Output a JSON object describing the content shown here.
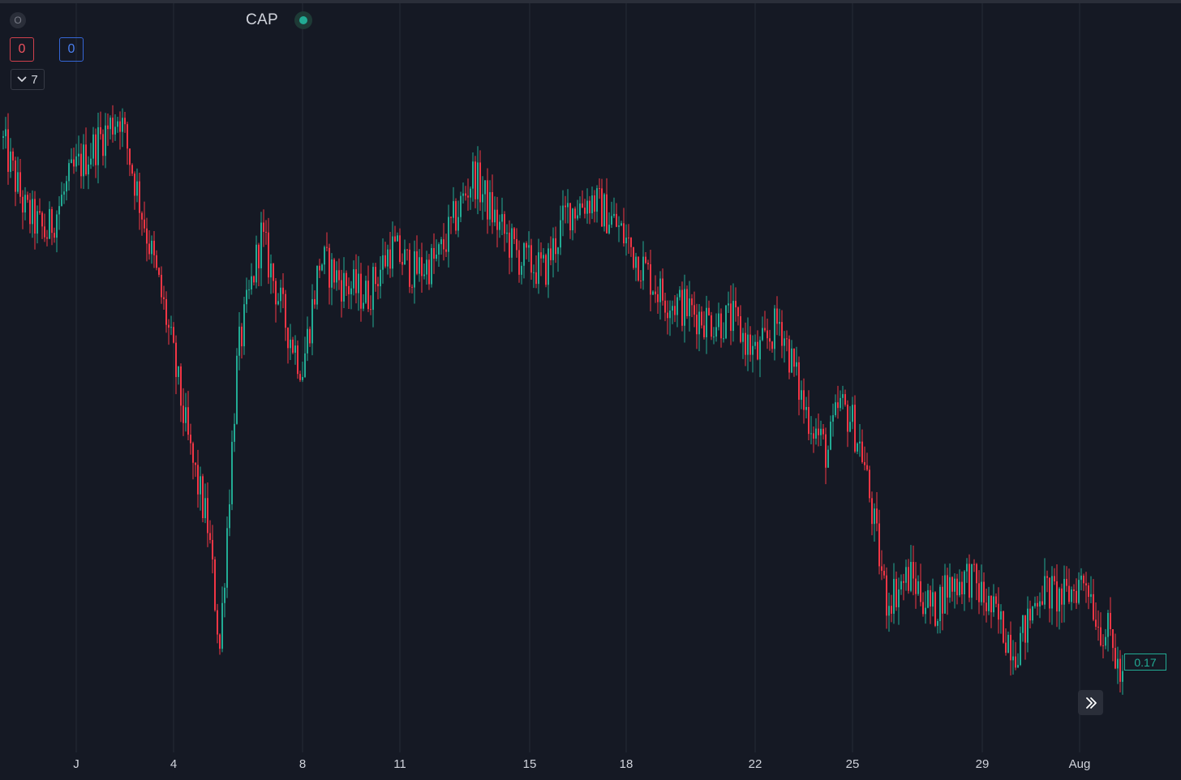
{
  "legend": {
    "symbol_icon_letter": "O",
    "symbol": "CAP",
    "status_color": "#22ab94"
  },
  "trade": {
    "sell_value": "0",
    "buy_value": "0"
  },
  "indicators": {
    "count": "7",
    "icon": "chevron-down-icon"
  },
  "last_price": "0.17",
  "scroll_button_icon": "double-chevron-right-icon",
  "colors": {
    "background": "#151924",
    "up": "#22ab94",
    "down": "#f23645",
    "grid": "#252a36",
    "text": "#d1d4dc"
  },
  "chart_data": {
    "type": "candlestick",
    "title": "",
    "xlabel": "",
    "ylabel": "",
    "x_tick_labels": [
      "J",
      "4",
      "8",
      "11",
      "15",
      "18",
      "22",
      "25",
      "29",
      "Aug"
    ],
    "y_axis_visible": false,
    "grid": "vertical lines at date ticks",
    "last_value": 0.17,
    "price_trace": [
      [
        0,
        0.62
      ],
      [
        0.02,
        0.56
      ],
      [
        0.038,
        0.54
      ],
      [
        0.06,
        0.59
      ],
      [
        0.1,
        0.64
      ],
      [
        0.14,
        0.47
      ],
      [
        0.16,
        0.36
      ],
      [
        0.175,
        0.3
      ],
      [
        0.185,
        0.2
      ],
      [
        0.2,
        0.44
      ],
      [
        0.22,
        0.54
      ],
      [
        0.24,
        0.47
      ],
      [
        0.255,
        0.43
      ],
      [
        0.27,
        0.52
      ],
      [
        0.29,
        0.5
      ],
      [
        0.31,
        0.49
      ],
      [
        0.33,
        0.53
      ],
      [
        0.35,
        0.51
      ],
      [
        0.37,
        0.52
      ],
      [
        0.4,
        0.59
      ],
      [
        0.42,
        0.55
      ],
      [
        0.44,
        0.52
      ],
      [
        0.46,
        0.51
      ],
      [
        0.48,
        0.56
      ],
      [
        0.5,
        0.57
      ],
      [
        0.52,
        0.55
      ],
      [
        0.54,
        0.52
      ],
      [
        0.56,
        0.49
      ],
      [
        0.58,
        0.48
      ],
      [
        0.6,
        0.47
      ],
      [
        0.62,
        0.47
      ],
      [
        0.64,
        0.44
      ],
      [
        0.66,
        0.47
      ],
      [
        0.68,
        0.4
      ],
      [
        0.7,
        0.36
      ],
      [
        0.71,
        0.4
      ],
      [
        0.72,
        0.39
      ],
      [
        0.73,
        0.36
      ],
      [
        0.74,
        0.3
      ],
      [
        0.75,
        0.24
      ],
      [
        0.77,
        0.26
      ],
      [
        0.79,
        0.23
      ],
      [
        0.8,
        0.25
      ],
      [
        0.82,
        0.26
      ],
      [
        0.84,
        0.23
      ],
      [
        0.86,
        0.2
      ],
      [
        0.87,
        0.22
      ],
      [
        0.88,
        0.25
      ],
      [
        0.9,
        0.24
      ],
      [
        0.92,
        0.26
      ],
      [
        0.93,
        0.22
      ],
      [
        0.94,
        0.21
      ],
      [
        0.95,
        0.17
      ]
    ]
  }
}
